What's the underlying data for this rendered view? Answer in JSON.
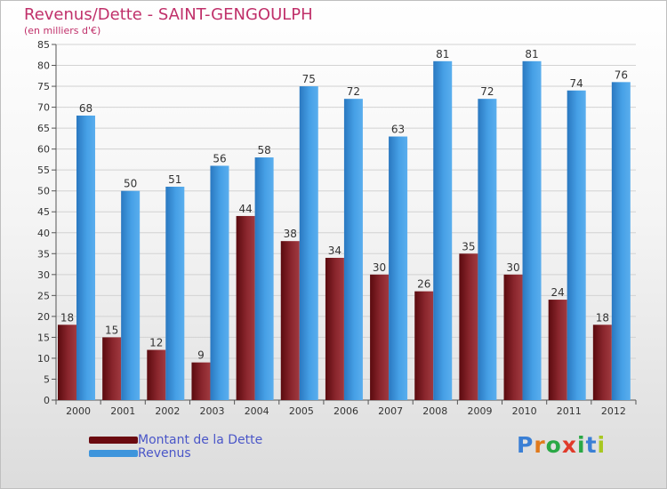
{
  "title": "Revenus/Dette - SAINT-GENGOULPH",
  "subtitle": "(en milliers d'€)",
  "colors": {
    "debt": "#7a1e25",
    "revenue": "#3e95dc",
    "title": "#c0306a",
    "legend_text": "#4a56c8"
  },
  "legend": [
    {
      "label": "Montant de la Dette",
      "color": "#6b0a10"
    },
    {
      "label": "Revenus",
      "color": "#3e95dc"
    }
  ],
  "logo": {
    "letters": [
      "P",
      "r",
      "o",
      "x",
      "i",
      "t",
      "i"
    ],
    "colors": [
      "#3a7fd5",
      "#e07a1c",
      "#2aa845",
      "#e03a2a",
      "#2aa845",
      "#3a7fd5",
      "#a8c820"
    ]
  },
  "chart_data": {
    "type": "bar",
    "categories": [
      "2000",
      "2001",
      "2002",
      "2003",
      "2004",
      "2005",
      "2006",
      "2007",
      "2008",
      "2009",
      "2010",
      "2011",
      "2012"
    ],
    "series": [
      {
        "name": "Montant de la Dette",
        "values": [
          18,
          15,
          12,
          9,
          44,
          38,
          34,
          30,
          26,
          35,
          30,
          24,
          18
        ]
      },
      {
        "name": "Revenus",
        "values": [
          68,
          50,
          51,
          56,
          58,
          75,
          72,
          63,
          81,
          72,
          81,
          74,
          76
        ]
      }
    ],
    "ylim": [
      0,
      85
    ],
    "ytick_step": 5,
    "grid": true
  }
}
